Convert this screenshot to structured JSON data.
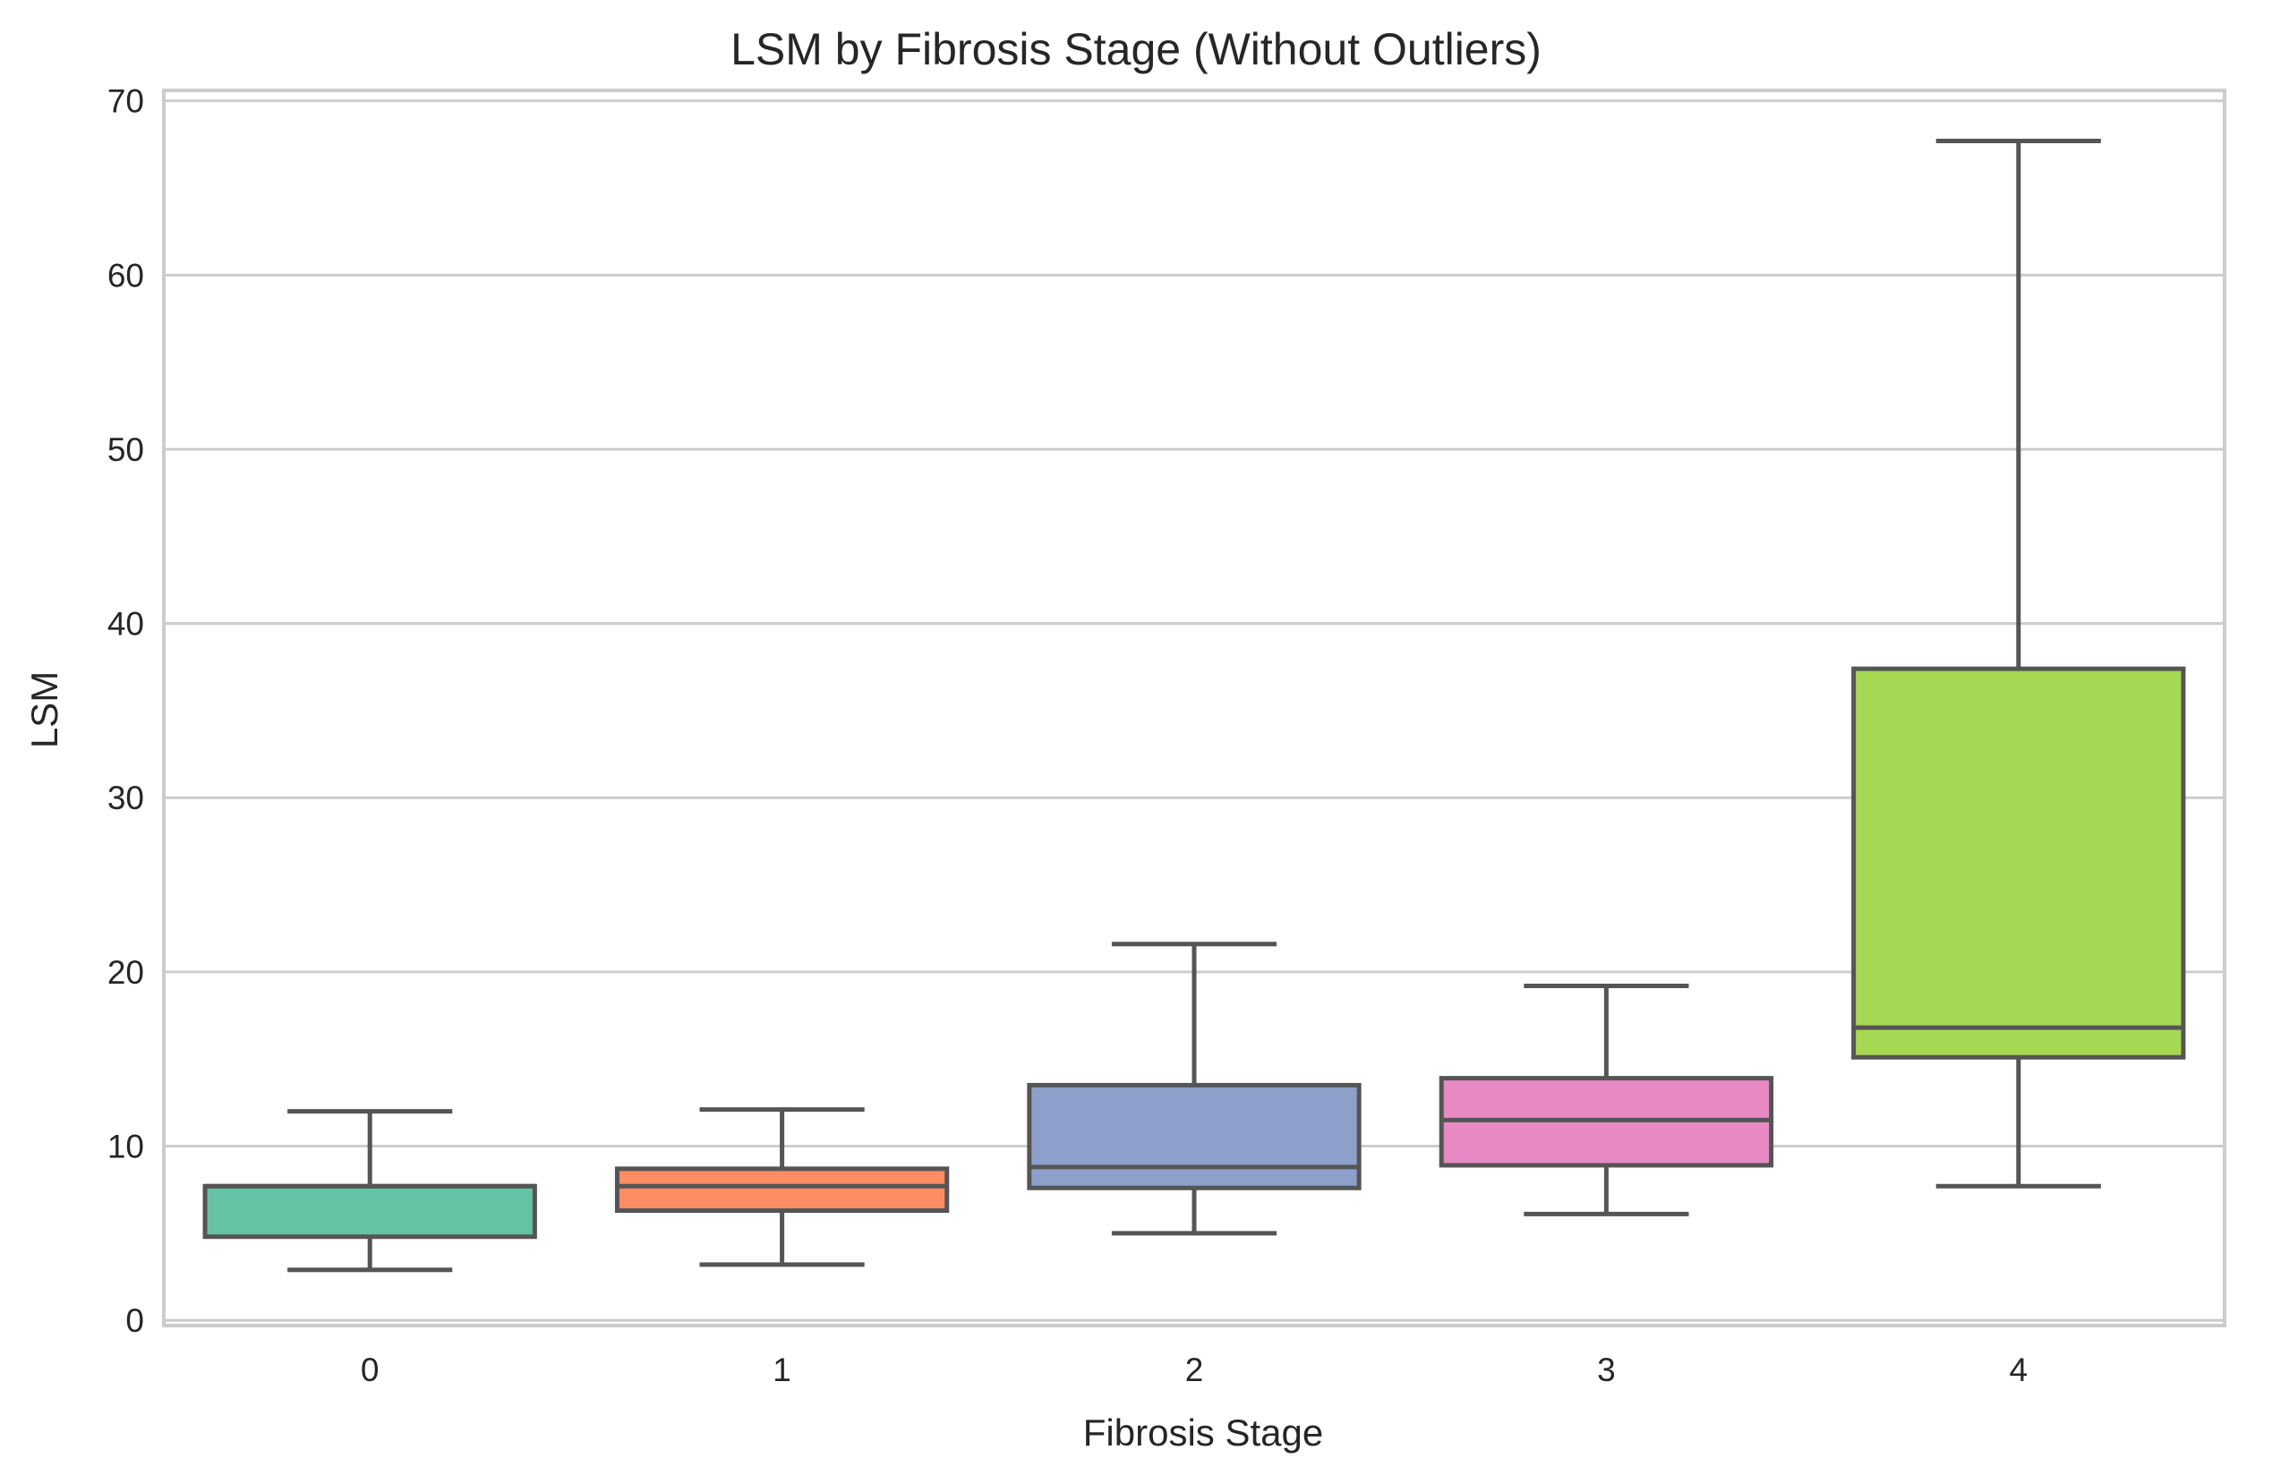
{
  "chart_data": {
    "type": "box",
    "title": "LSM by Fibrosis Stage (Without Outliers)",
    "xlabel": "Fibrosis Stage",
    "ylabel": "LSM",
    "ylim": [
      -0.3,
      70.6
    ],
    "yticks": [
      0,
      10,
      20,
      30,
      40,
      50,
      60,
      70
    ],
    "grid": true,
    "categories": [
      "0",
      "1",
      "2",
      "3",
      "4"
    ],
    "boxes": [
      {
        "category": "0",
        "whisker_low": 2.9,
        "q1": 4.8,
        "median": 7.7,
        "q3": 7.7,
        "whisker_high": 12.0,
        "color": "#66c2a5"
      },
      {
        "category": "1",
        "whisker_low": 3.2,
        "q1": 6.3,
        "median": 7.7,
        "q3": 8.7,
        "whisker_high": 12.1,
        "color": "#fc8d62"
      },
      {
        "category": "2",
        "whisker_low": 5.0,
        "q1": 7.6,
        "median": 8.8,
        "q3": 13.5,
        "whisker_high": 21.6,
        "color": "#8da0cb"
      },
      {
        "category": "3",
        "whisker_low": 6.1,
        "q1": 8.9,
        "median": 11.5,
        "q3": 13.9,
        "whisker_high": 19.2,
        "color": "#e78ac3"
      },
      {
        "category": "4",
        "whisker_low": 7.7,
        "q1": 15.1,
        "median": 16.8,
        "q3": 37.4,
        "whisker_high": 67.7,
        "color": "#a6d854"
      }
    ]
  }
}
